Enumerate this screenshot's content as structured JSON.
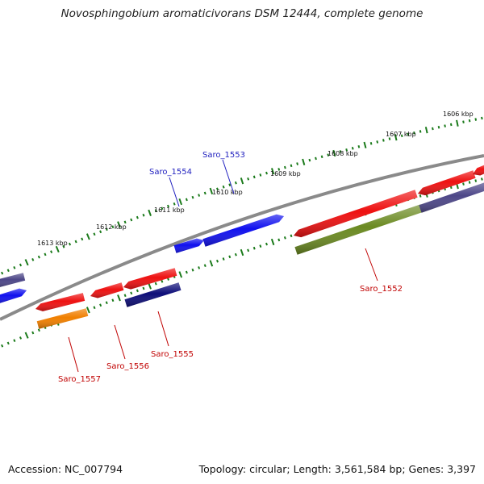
{
  "title": "Novosphingobium aromaticivorans DSM 12444, complete genome",
  "footer": {
    "accession": "Accession: NC_007794",
    "summary": "Topology: circular; Length: 3,561,584 bp; Genes: 3,397"
  },
  "colors": {
    "backbone": "#8a8a8a",
    "tick": "#1a7a1a",
    "label_top": "#1f1fbf",
    "label_bottom": "#c00000",
    "red": "#ee1111",
    "blue": "#1010ee",
    "slate": "#4d4788",
    "olive": "#6b8a22",
    "navy": "#0d0d78",
    "orange": "#f07f00"
  },
  "ticks": {
    "labels": [
      "1613 kbp",
      "1612 kbp",
      "1611 kbp",
      "1610 kbp",
      "1609 kbp",
      "1608 kbp",
      "1607 kbp",
      "1606 kbp"
    ]
  },
  "gene_labels": {
    "top": [
      "Saro_1554",
      "Saro_1553"
    ],
    "bottom": [
      "Saro_1552",
      "Saro_1557",
      "Saro_1556",
      "Saro_1555"
    ]
  }
}
